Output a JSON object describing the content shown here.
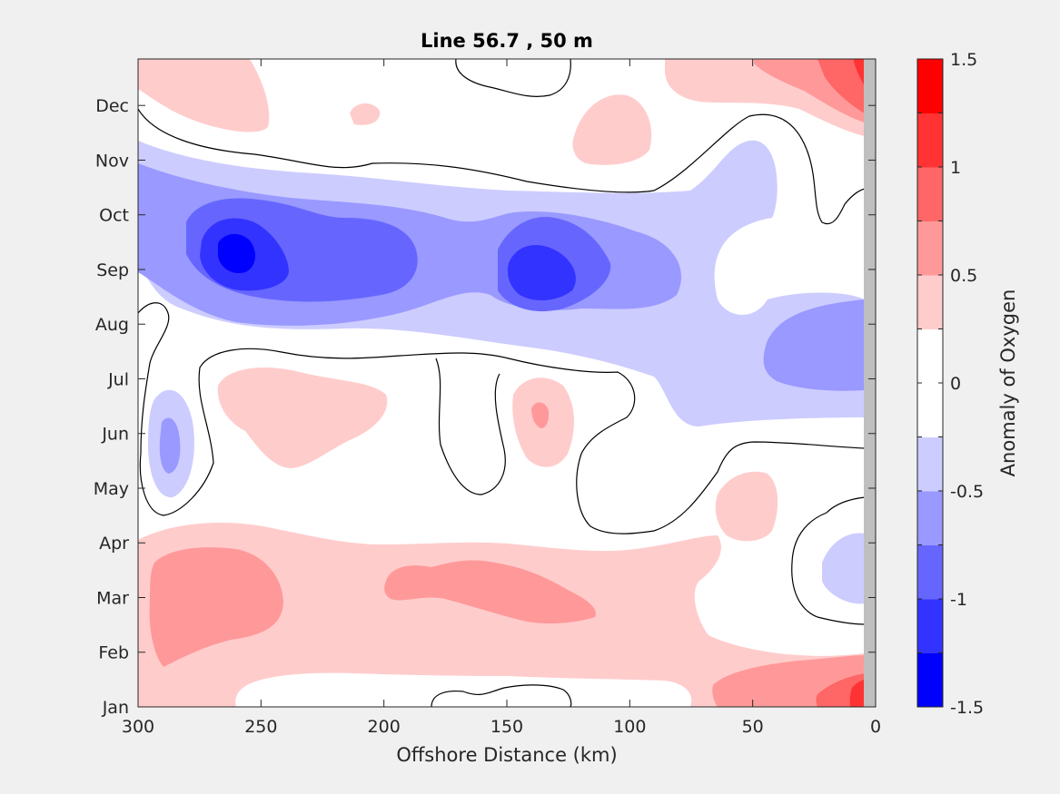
{
  "chart_data": {
    "type": "heatmap",
    "title": "Line 56.7 , 50 m",
    "xlabel": "Offshore Distance (km)",
    "ylabel": "",
    "xlim": [
      300,
      0
    ],
    "x_reversed": true,
    "x_ticks": [
      300,
      250,
      200,
      150,
      100,
      50,
      0
    ],
    "y_ticks": [
      "Jan",
      "Feb",
      "Mar",
      "Apr",
      "May",
      "Jun",
      "Jul",
      "Aug",
      "Sep",
      "Oct",
      "Nov",
      "Dec"
    ],
    "ylim": [
      0,
      12
    ],
    "colorbar": {
      "label": "Anomaly of Oxygen",
      "range": [
        -1.5,
        1.5
      ],
      "ticks": [
        "1.5",
        "1",
        "0.5",
        "0",
        "-0.5",
        "-1",
        "-1.5"
      ],
      "levels": [
        -1.5,
        -1.25,
        -1,
        -0.75,
        -0.5,
        -0.25,
        0,
        0.25,
        0.5,
        0.75,
        1,
        1.25,
        1.5
      ],
      "colors": [
        "#0000ff",
        "#3333ff",
        "#6666ff",
        "#9999ff",
        "#ccccff",
        "#ffffff",
        "#ffffff",
        "#ffcccc",
        "#ff9999",
        "#ff6666",
        "#ff3333",
        "#ff0000"
      ]
    },
    "contour_regions": [
      {
        "level": -0.25,
        "color": "#ccccff",
        "note": "fall negative band"
      },
      {
        "level": -0.5,
        "color": "#9999ff"
      },
      {
        "level": -0.75,
        "color": "#6666ff"
      },
      {
        "level": -1.0,
        "color": "#3333ff"
      },
      {
        "level": 0.25,
        "color": "#ffcccc",
        "note": "spring positive band"
      },
      {
        "level": 0.5,
        "color": "#ff9999"
      },
      {
        "level": 0.75,
        "color": "#ff6666"
      }
    ],
    "coastal_mask_color": "#bfbfbf",
    "grid": false,
    "legend": "colorbar-right"
  }
}
